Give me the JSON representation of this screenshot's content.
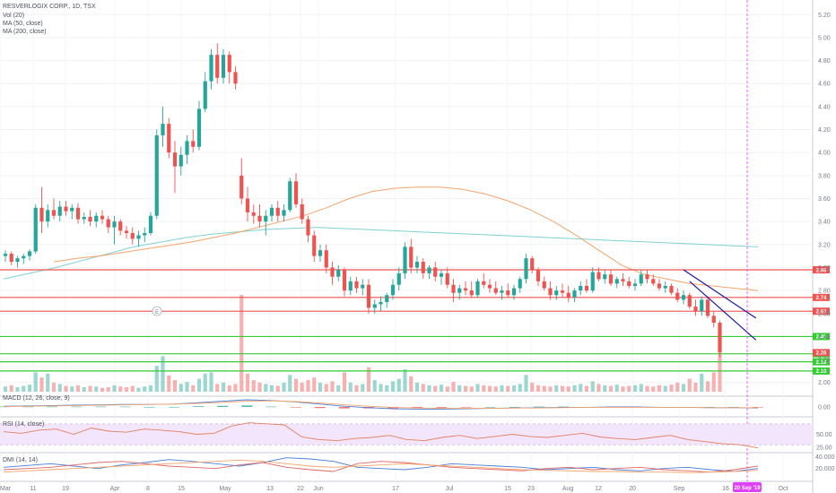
{
  "legends": {
    "symbol": "RESVERLOGIX CORP., 1D, TSX",
    "vol": "Vol (20)",
    "ma50": "MA (50, close)",
    "ma200": "MA (200, close)",
    "macd": "MACD (12, 26, close, 9)",
    "rsi": "RSI (14, close)",
    "dmi": "DMI (14, 14)"
  },
  "crosshair_date": "20 Sep '19",
  "colors": {
    "up": "#26a69a",
    "down": "#ef5350",
    "ma50": "#f4a46a",
    "ma200": "#7fd1d1",
    "resistance": "#ef5350",
    "support": "#33cc33",
    "channel": "#1a1aa6",
    "crosshair": "#e040fb",
    "rsi_band": "#f3e5fb",
    "rsi_line": "#e08060",
    "dmi_plus": "#4a7fd9",
    "dmi_minus": "#e06666",
    "adx": "#f4a46a",
    "macd": "#4a7fd9",
    "signal": "#f4a46a"
  },
  "chart_data": {
    "type": "candlestick",
    "price_axis": {
      "ticks": [
        "5.20",
        "5.00",
        "4.80",
        "4.60",
        "4.40",
        "4.20",
        "4.00",
        "3.80",
        "3.60",
        "3.40",
        "3.20",
        "3.00",
        "2.80",
        "2.60",
        "2.40",
        "2.20",
        "2.00"
      ],
      "range": [
        1.92,
        5.28
      ]
    },
    "x_axis": {
      "labels": [
        "Mar",
        "11",
        "19",
        "Apr",
        "8",
        "15",
        "May",
        "13",
        "22",
        "Jun",
        "17",
        "Jul",
        "15",
        "23",
        "Aug",
        "12",
        "20",
        "Sep",
        "16",
        "Oct"
      ]
    },
    "candles": [
      [
        3.1,
        3.15,
        3.05,
        3.12
      ],
      [
        3.12,
        3.14,
        3.02,
        3.05
      ],
      [
        3.05,
        3.1,
        3.0,
        3.08
      ],
      [
        3.08,
        3.12,
        3.03,
        3.1
      ],
      [
        3.1,
        3.16,
        3.06,
        3.14
      ],
      [
        3.14,
        3.55,
        3.12,
        3.52
      ],
      [
        3.52,
        3.7,
        3.3,
        3.4
      ],
      [
        3.4,
        3.55,
        3.35,
        3.5
      ],
      [
        3.5,
        3.6,
        3.42,
        3.45
      ],
      [
        3.45,
        3.58,
        3.4,
        3.53
      ],
      [
        3.53,
        3.58,
        3.45,
        3.49
      ],
      [
        3.49,
        3.55,
        3.42,
        3.52
      ],
      [
        3.52,
        3.56,
        3.38,
        3.42
      ],
      [
        3.42,
        3.48,
        3.38,
        3.44
      ],
      [
        3.44,
        3.5,
        3.36,
        3.4
      ],
      [
        3.4,
        3.48,
        3.35,
        3.45
      ],
      [
        3.45,
        3.5,
        3.38,
        3.42
      ],
      [
        3.42,
        3.45,
        3.3,
        3.35
      ],
      [
        3.35,
        3.45,
        3.2,
        3.4
      ],
      [
        3.4,
        3.42,
        3.28,
        3.32
      ],
      [
        3.32,
        3.36,
        3.25,
        3.3
      ],
      [
        3.3,
        3.35,
        3.2,
        3.25
      ],
      [
        3.25,
        3.32,
        3.18,
        3.28
      ],
      [
        3.28,
        3.35,
        3.22,
        3.3
      ],
      [
        3.3,
        3.48,
        3.28,
        3.45
      ],
      [
        3.45,
        4.2,
        3.42,
        4.15
      ],
      [
        4.15,
        4.4,
        4.05,
        4.25
      ],
      [
        4.25,
        4.3,
        3.95,
        4.0
      ],
      [
        4.0,
        4.1,
        3.65,
        3.88
      ],
      [
        3.88,
        4.05,
        3.8,
        3.98
      ],
      [
        3.98,
        4.15,
        3.9,
        4.1
      ],
      [
        4.1,
        4.2,
        4.0,
        4.05
      ],
      [
        4.05,
        4.45,
        4.02,
        4.38
      ],
      [
        4.38,
        4.7,
        4.35,
        4.62
      ],
      [
        4.62,
        4.9,
        4.55,
        4.85
      ],
      [
        4.85,
        4.95,
        4.6,
        4.65
      ],
      [
        4.65,
        4.9,
        4.6,
        4.85
      ],
      [
        4.85,
        4.88,
        4.6,
        4.7
      ],
      [
        4.7,
        4.75,
        4.55,
        4.6
      ],
      [
        3.8,
        3.95,
        3.55,
        3.6
      ],
      [
        3.6,
        3.7,
        3.4,
        3.48
      ],
      [
        3.48,
        3.55,
        3.38,
        3.45
      ],
      [
        3.45,
        3.55,
        3.35,
        3.4
      ],
      [
        3.4,
        3.5,
        3.28,
        3.45
      ],
      [
        3.45,
        3.55,
        3.4,
        3.52
      ],
      [
        3.52,
        3.58,
        3.4,
        3.45
      ],
      [
        3.45,
        3.55,
        3.4,
        3.5
      ],
      [
        3.5,
        3.78,
        3.48,
        3.75
      ],
      [
        3.75,
        3.82,
        3.52,
        3.55
      ],
      [
        3.55,
        3.6,
        3.38,
        3.42
      ],
      [
        3.42,
        3.45,
        3.22,
        3.28
      ],
      [
        3.28,
        3.32,
        3.05,
        3.1
      ],
      [
        3.1,
        3.2,
        3.05,
        3.15
      ],
      [
        3.15,
        3.2,
        2.95,
        3.0
      ],
      [
        3.0,
        3.05,
        2.85,
        2.92
      ],
      [
        2.92,
        3.02,
        2.88,
        2.98
      ],
      [
        2.98,
        3.0,
        2.75,
        2.8
      ],
      [
        2.8,
        2.92,
        2.76,
        2.88
      ],
      [
        2.88,
        2.92,
        2.78,
        2.82
      ],
      [
        2.82,
        2.9,
        2.76,
        2.85
      ],
      [
        2.85,
        2.9,
        2.6,
        2.65
      ],
      [
        2.65,
        2.72,
        2.6,
        2.68
      ],
      [
        2.68,
        2.75,
        2.62,
        2.7
      ],
      [
        2.7,
        2.78,
        2.65,
        2.76
      ],
      [
        2.76,
        2.9,
        2.72,
        2.85
      ],
      [
        2.85,
        3.0,
        2.8,
        2.95
      ],
      [
        2.95,
        3.22,
        2.9,
        3.18
      ],
      [
        3.18,
        3.25,
        2.95,
        3.0
      ],
      [
        3.0,
        3.1,
        2.95,
        3.05
      ],
      [
        3.05,
        3.08,
        2.9,
        2.95
      ],
      [
        2.95,
        3.02,
        2.9,
        3.0
      ],
      [
        3.0,
        3.05,
        2.88,
        2.92
      ],
      [
        2.92,
        2.98,
        2.85,
        2.95
      ],
      [
        2.95,
        3.0,
        2.82,
        2.85
      ],
      [
        2.85,
        2.9,
        2.7,
        2.78
      ],
      [
        2.78,
        2.85,
        2.72,
        2.82
      ],
      [
        2.82,
        2.88,
        2.76,
        2.8
      ],
      [
        2.8,
        2.88,
        2.74,
        2.76
      ],
      [
        2.76,
        2.9,
        2.74,
        2.88
      ],
      [
        2.88,
        2.95,
        2.82,
        2.85
      ],
      [
        2.85,
        2.9,
        2.78,
        2.82
      ],
      [
        2.82,
        2.88,
        2.76,
        2.78
      ],
      [
        2.78,
        2.84,
        2.72,
        2.8
      ],
      [
        2.8,
        2.86,
        2.74,
        2.76
      ],
      [
        2.76,
        2.85,
        2.72,
        2.82
      ],
      [
        2.82,
        2.92,
        2.78,
        2.9
      ],
      [
        2.9,
        3.12,
        2.86,
        3.08
      ],
      [
        3.08,
        3.1,
        2.95,
        2.98
      ],
      [
        2.98,
        3.0,
        2.84,
        2.88
      ],
      [
        2.88,
        2.92,
        2.8,
        2.82
      ],
      [
        2.82,
        2.88,
        2.72,
        2.76
      ],
      [
        2.76,
        2.84,
        2.72,
        2.8
      ],
      [
        2.8,
        2.86,
        2.74,
        2.78
      ],
      [
        2.78,
        2.84,
        2.7,
        2.74
      ],
      [
        2.74,
        2.82,
        2.7,
        2.8
      ],
      [
        2.8,
        2.88,
        2.76,
        2.84
      ],
      [
        2.84,
        2.9,
        2.78,
        2.8
      ],
      [
        2.8,
        3.0,
        2.78,
        2.96
      ],
      [
        2.96,
        3.0,
        2.88,
        2.9
      ],
      [
        2.9,
        2.98,
        2.86,
        2.94
      ],
      [
        2.94,
        2.98,
        2.84,
        2.86
      ],
      [
        2.86,
        2.92,
        2.82,
        2.9
      ],
      [
        2.9,
        2.95,
        2.84,
        2.88
      ],
      [
        2.88,
        2.92,
        2.82,
        2.84
      ],
      [
        2.84,
        2.9,
        2.8,
        2.86
      ],
      [
        2.86,
        2.98,
        2.84,
        2.94
      ],
      [
        2.94,
        2.98,
        2.86,
        2.9
      ],
      [
        2.9,
        2.94,
        2.84,
        2.86
      ],
      [
        2.86,
        2.9,
        2.8,
        2.82
      ],
      [
        2.82,
        2.88,
        2.78,
        2.84
      ],
      [
        2.84,
        2.86,
        2.76,
        2.78
      ],
      [
        2.78,
        2.82,
        2.7,
        2.72
      ],
      [
        2.72,
        2.8,
        2.68,
        2.76
      ],
      [
        2.76,
        2.78,
        2.64,
        2.66
      ],
      [
        2.66,
        2.72,
        2.58,
        2.62
      ],
      [
        2.62,
        2.75,
        2.58,
        2.72
      ],
      [
        2.72,
        2.75,
        2.56,
        2.58
      ],
      [
        2.58,
        2.62,
        2.48,
        2.52
      ],
      [
        2.52,
        2.54,
        2.22,
        2.26
      ]
    ],
    "volume": [
      8,
      10,
      7,
      9,
      11,
      30,
      22,
      28,
      14,
      12,
      9,
      8,
      10,
      7,
      9,
      8,
      6,
      7,
      10,
      8,
      7,
      9,
      6,
      8,
      10,
      40,
      55,
      25,
      18,
      12,
      15,
      10,
      20,
      28,
      30,
      12,
      14,
      10,
      12,
      150,
      28,
      18,
      14,
      12,
      10,
      9,
      14,
      26,
      20,
      14,
      18,
      22,
      14,
      12,
      16,
      10,
      30,
      14,
      10,
      12,
      38,
      18,
      12,
      10,
      16,
      20,
      35,
      24,
      14,
      12,
      10,
      9,
      11,
      8,
      15,
      10,
      9,
      8,
      12,
      10,
      9,
      8,
      10,
      9,
      10,
      12,
      26,
      14,
      10,
      9,
      8,
      10,
      9,
      8,
      10,
      12,
      9,
      16,
      12,
      10,
      9,
      11,
      8,
      9,
      10,
      12,
      9,
      8,
      10,
      9,
      11,
      14,
      12,
      20,
      14,
      28,
      16,
      30,
      58
    ],
    "ma50": [
      3.05,
      3.08,
      3.1,
      3.13,
      3.16,
      3.19,
      3.22,
      3.26,
      3.3,
      3.35,
      3.4,
      3.45,
      3.52,
      3.6,
      3.66,
      3.69,
      3.7,
      3.7,
      3.68,
      3.64,
      3.58,
      3.5,
      3.4,
      3.28,
      3.15,
      3.02,
      2.94,
      2.9,
      2.86,
      2.84,
      2.82,
      2.8
    ],
    "ma200": [
      2.9,
      2.95,
      3.0,
      3.06,
      3.12,
      3.18,
      3.22,
      3.26,
      3.29,
      3.31,
      3.33,
      3.34,
      3.35,
      3.34,
      3.33,
      3.32,
      3.31,
      3.3,
      3.29,
      3.28,
      3.27,
      3.26,
      3.25,
      3.24,
      3.23,
      3.22,
      3.21,
      3.2,
      3.19,
      3.18
    ],
    "horizontal_levels": [
      {
        "kind": "resistance",
        "value": 2.98,
        "label": "2.98"
      },
      {
        "kind": "resistance",
        "value": 2.74,
        "label": "2.74"
      },
      {
        "kind": "resistance",
        "value": 2.62,
        "label": "2.62"
      },
      {
        "kind": "support",
        "value": 2.4,
        "label": "2.40"
      },
      {
        "kind": "support",
        "value": 2.25,
        "label": "2.25"
      },
      {
        "kind": "support",
        "value": 2.18,
        "label": "2.18"
      },
      {
        "kind": "support",
        "value": 2.1,
        "label": "2.10"
      }
    ],
    "last_price_label": "2.26",
    "channel": [
      {
        "from": [
          112,
          2.98
        ],
        "to": [
          121,
          2.56
        ]
      },
      {
        "from": [
          113,
          2.88
        ],
        "to": [
          121,
          2.37
        ]
      }
    ],
    "macd": {
      "ticks": [
        "0.00"
      ],
      "line": [
        0.02,
        0.03,
        0.04,
        0.05,
        0.06,
        0.07,
        0.07,
        0.08,
        0.12,
        0.16,
        0.2,
        0.18,
        0.14,
        0.08,
        0.02,
        -0.02,
        -0.05,
        -0.06,
        -0.06,
        -0.05,
        -0.04,
        -0.03,
        -0.02,
        -0.01,
        -0.01,
        0.0,
        0.0,
        -0.01,
        -0.01,
        -0.02,
        -0.02,
        -0.03
      ],
      "signal": [
        0.01,
        0.02,
        0.03,
        0.04,
        0.05,
        0.06,
        0.07,
        0.08,
        0.1,
        0.13,
        0.16,
        0.17,
        0.15,
        0.11,
        0.06,
        0.02,
        -0.01,
        -0.03,
        -0.04,
        -0.04,
        -0.04,
        -0.03,
        -0.03,
        -0.02,
        -0.01,
        -0.01,
        -0.01,
        -0.01,
        -0.01,
        -0.02,
        -0.02,
        -0.02
      ],
      "hist": [
        0.01,
        0.01,
        0.01,
        0.01,
        0.01,
        0.01,
        0.0,
        0.0,
        0.02,
        0.03,
        0.04,
        0.01,
        -0.01,
        -0.03,
        -0.04,
        -0.04,
        -0.04,
        -0.03,
        -0.02,
        -0.01,
        0.0,
        0.0,
        0.01,
        0.01,
        0.0,
        0.01,
        0.01,
        0.0,
        0.0,
        0.0,
        0.0,
        -0.01
      ]
    },
    "rsi": {
      "ticks": [
        "50.00",
        "25.00"
      ],
      "values": [
        55,
        52,
        58,
        60,
        50,
        62,
        56,
        54,
        60,
        58,
        55,
        50,
        52,
        66,
        72,
        70,
        68,
        45,
        40,
        38,
        42,
        44,
        48,
        40,
        38,
        44,
        48,
        42,
        46,
        50,
        46,
        44,
        48,
        52,
        45,
        42,
        40,
        44,
        48,
        40,
        36,
        32,
        30,
        24
      ]
    },
    "dmi": {
      "ticks": [
        "40.000",
        "20.000"
      ],
      "plus": [
        22,
        25,
        28,
        24,
        20,
        26,
        30,
        35,
        32,
        28,
        24,
        30,
        38,
        36,
        32,
        22,
        20,
        18,
        22,
        28,
        26,
        24,
        22,
        18,
        20,
        22,
        18,
        16,
        20,
        22,
        18,
        15,
        20
      ],
      "minus": [
        18,
        20,
        22,
        26,
        30,
        32,
        28,
        24,
        22,
        20,
        26,
        30,
        22,
        18,
        15,
        28,
        32,
        30,
        26,
        22,
        20,
        18,
        16,
        20,
        22,
        18,
        20,
        22,
        18,
        16,
        14,
        18,
        24
      ],
      "adx": [
        14,
        16,
        18,
        20,
        22,
        24,
        26,
        28,
        30,
        32,
        34,
        32,
        28,
        24,
        22,
        24,
        26,
        28,
        26,
        24,
        22,
        20,
        18,
        17,
        16,
        15,
        15,
        14,
        14,
        13,
        14,
        15,
        17
      ]
    }
  }
}
